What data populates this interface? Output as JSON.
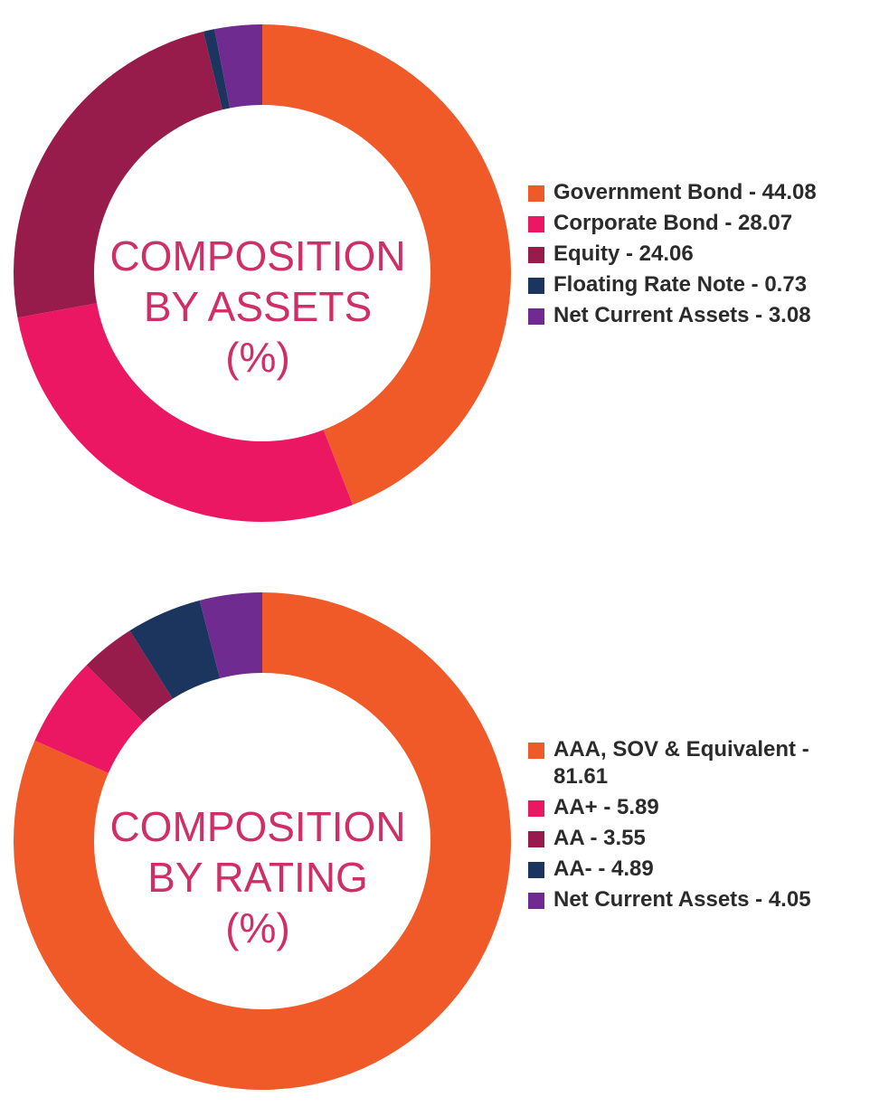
{
  "colors": {
    "orange": "#f05a28",
    "pink": "#ec1763",
    "maroon": "#971b4b",
    "navy": "#1b355e",
    "purple": "#6f2b8f",
    "center_text": "#cf2f66"
  },
  "chart_data": [
    {
      "type": "pie",
      "title_lines": [
        "COMPOSITION",
        "BY ASSETS",
        "(%)"
      ],
      "slices": [
        {
          "label": "Government Bond - 44.08",
          "name": "Government Bond",
          "value": 44.08,
          "color": "#f05a28"
        },
        {
          "label": "Corporate Bond - 28.07",
          "name": "Corporate Bond",
          "value": 28.07,
          "color": "#ec1763"
        },
        {
          "label": "Equity - 24.06",
          "name": "Equity",
          "value": 24.06,
          "color": "#971b4b"
        },
        {
          "label": "Floating Rate Note - 0.73",
          "name": "Floating Rate Note",
          "value": 0.73,
          "color": "#1b355e"
        },
        {
          "label": "Net Current Assets - 3.08",
          "name": "Net Current Assets",
          "value": 3.08,
          "color": "#6f2b8f"
        }
      ],
      "legend_position": "right"
    },
    {
      "type": "pie",
      "title_lines": [
        "COMPOSITION",
        "BY RATING",
        "(%)"
      ],
      "slices": [
        {
          "label": "AAA, SOV & Equivalent - 81.61",
          "name": "AAA, SOV & Equivalent",
          "value": 81.61,
          "color": "#f05a28"
        },
        {
          "label": "AA+ - 5.89",
          "name": "AA+",
          "value": 5.89,
          "color": "#ec1763"
        },
        {
          "label": "AA - 3.55",
          "name": "AA",
          "value": 3.55,
          "color": "#971b4b"
        },
        {
          "label": "AA- - 4.89",
          "name": "AA-",
          "value": 4.89,
          "color": "#1b355e"
        },
        {
          "label": "Net Current Assets - 4.05",
          "name": "Net Current Assets",
          "value": 4.05,
          "color": "#6f2b8f"
        }
      ],
      "legend_position": "right"
    }
  ]
}
